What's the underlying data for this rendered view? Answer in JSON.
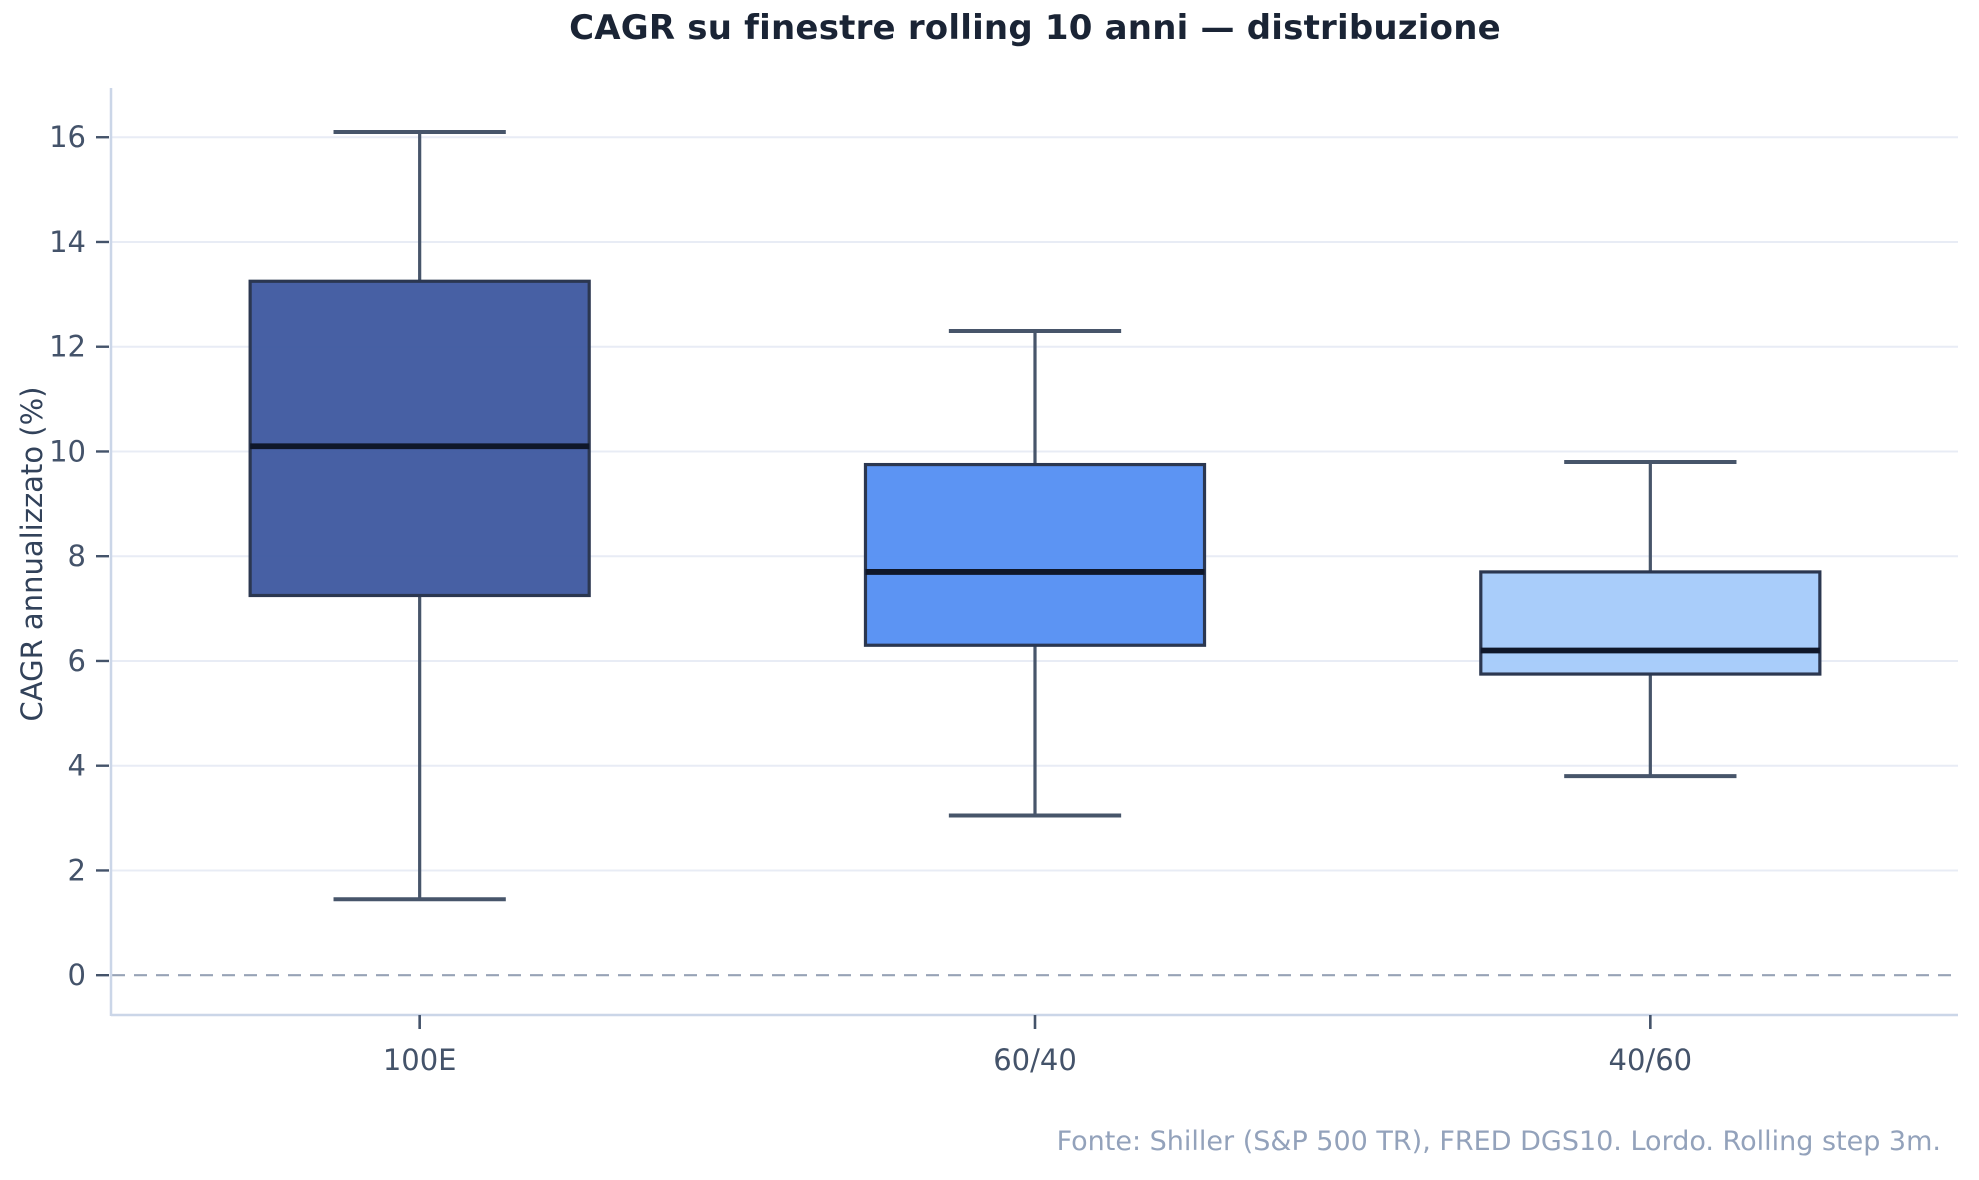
{
  "title": "CAGR su finestre rolling 10 anni — distribuzione",
  "y_axis": {
    "label": "CAGR annualizzato (%)",
    "ticks": [
      0,
      2,
      4,
      6,
      8,
      10,
      12,
      14,
      16
    ]
  },
  "x_axis": {
    "categories": [
      "100E",
      "60/40",
      "40/60"
    ]
  },
  "footer": "Fonte: Shiller (S&P 500 TR), FRED DGS10. Lordo. Rolling step 3m.",
  "chart_data": {
    "type": "boxplot",
    "title": "CAGR su finestre rolling 10 anni — distribuzione",
    "ylabel": "CAGR annualizzato (%)",
    "categories": [
      "100E",
      "60/40",
      "40/60"
    ],
    "ylim": [
      -0.76,
      16.94
    ],
    "grid": true,
    "zero_line_dashed": true,
    "legend": "none",
    "series": [
      {
        "name": "100E",
        "low": 1.45,
        "q1": 7.25,
        "median": 10.1,
        "q3": 13.25,
        "high": 16.1,
        "fill": "#3f59a0"
      },
      {
        "name": "60/40",
        "low": 3.05,
        "q1": 6.3,
        "median": 7.7,
        "q3": 9.75,
        "high": 12.3,
        "fill": "#5590f2"
      },
      {
        "name": "40/60",
        "low": 3.8,
        "q1": 5.75,
        "median": 6.2,
        "q3": 7.7,
        "high": 9.8,
        "fill": "#a6cbfa"
      }
    ],
    "colors": {
      "grid": "#e8ecf5",
      "zero_line": "#97a3b6",
      "spine": "#cbd6e8",
      "whisker": "#47556a",
      "box_border": "#2b3750",
      "median": "#0f1729",
      "tick_label": "#44536a",
      "title": "#1a2435",
      "footer": "#93a2bb"
    }
  }
}
